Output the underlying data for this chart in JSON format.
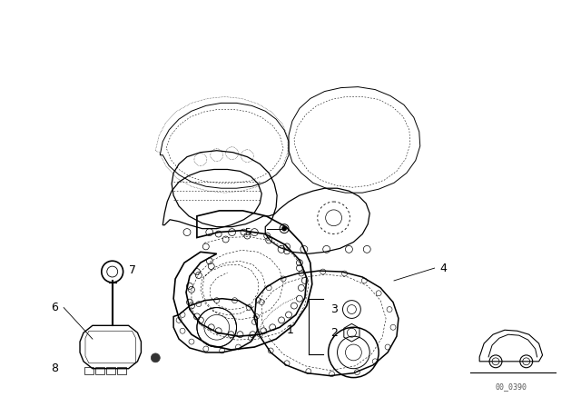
{
  "background_color": "#ffffff",
  "line_color": "#000000",
  "watermark": "00_0390",
  "fig_width": 6.4,
  "fig_height": 4.48,
  "dpi": 100
}
